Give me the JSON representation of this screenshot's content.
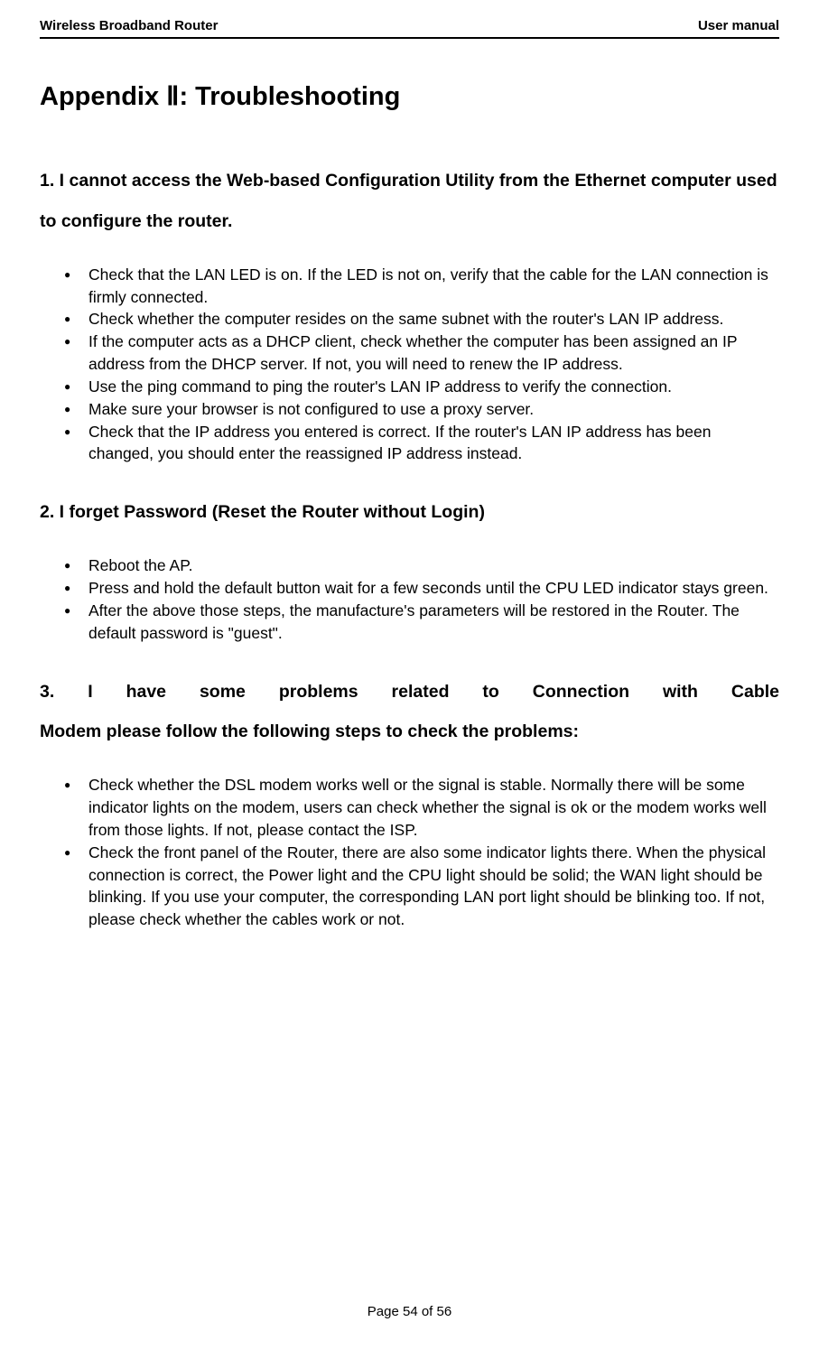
{
  "header": {
    "left": "Wireless Broadband Router",
    "right": "User manual"
  },
  "title": "Appendix Ⅱ: Troubleshooting",
  "section1": {
    "heading": "1. I cannot access the Web-based Configuration Utility from the Ethernet computer used to configure the router.",
    "items": [
      "Check that the LAN LED is on. If the LED is not on, verify that the cable for the LAN connection is firmly connected.",
      "Check whether the computer resides on the same subnet with the router's LAN IP address.",
      "If the computer acts as a DHCP client, check whether the computer has been assigned an IP address from the DHCP server. If not, you will need to renew the IP address.",
      "Use the ping command to ping the router's LAN IP address to verify the connection.",
      "Make sure your browser is not configured to use a proxy server.",
      "Check that the IP address you entered is correct. If the router's LAN IP address has been changed, you should enter the reassigned IP address instead."
    ]
  },
  "section2": {
    "heading": "2. I forget Password (Reset the Router without Login)",
    "items": [
      "Reboot the AP.",
      "Press and hold the default button wait for a few seconds until the CPU LED indicator stays green.",
      "After the above those steps, the manufacture's parameters will be restored in the Router. The default password is \"guest\"."
    ]
  },
  "section3": {
    "line1": "3. I have some problems related to Connection with Cable",
    "line2": "Modem please follow the following steps to check the problems:",
    "items": [
      "Check whether the DSL modem works well or the signal is stable. Normally there will be some indicator lights on the modem, users can check whether the signal is ok or the modem works well from those lights. If not, please contact the ISP.",
      "Check the front panel of the Router, there are also some indicator lights there. When the physical connection is correct, the Power light and the CPU light should be solid; the WAN light should be blinking. If you use your computer, the corresponding LAN port light should be blinking too. If not, please check whether the cables work or not."
    ]
  },
  "footer": "Page 54 of 56"
}
